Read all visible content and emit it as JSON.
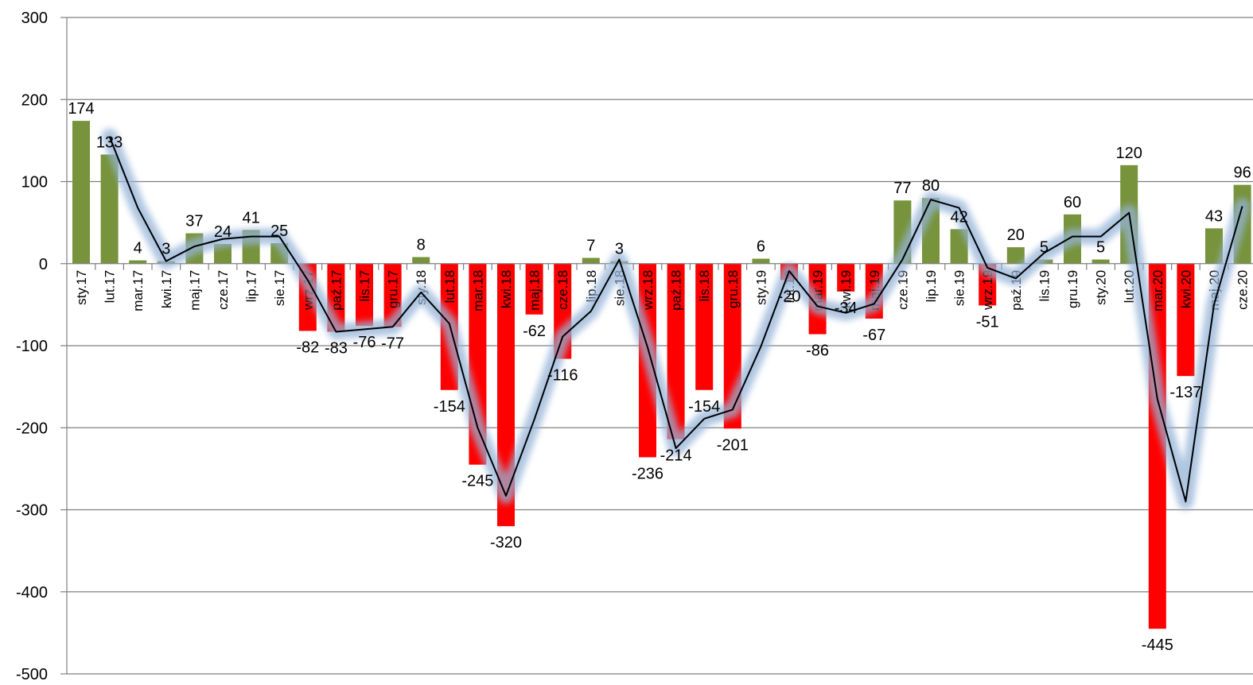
{
  "chart_data": {
    "type": "bar",
    "title": "",
    "xlabel": "",
    "ylabel": "",
    "ylim": [
      -500,
      300
    ],
    "yticks": [
      300,
      200,
      100,
      0,
      -100,
      -200,
      -300,
      -400,
      -500
    ],
    "grid": true,
    "legend": "none",
    "colors": {
      "positive": "#77933C",
      "negative": "#FF0000",
      "trend_line": "#000000",
      "trend_glow": "#95B3D7",
      "grid": "#808080"
    },
    "categories": [
      "sty.17",
      "lut.17",
      "mar.17",
      "kwi.17",
      "maj.17",
      "cze.17",
      "lip.17",
      "sie.17",
      "wrz.17",
      "paź.17",
      "lis.17",
      "gru.17",
      "sty.18",
      "lut.18",
      "mar.18",
      "kwi.18",
      "maj.18",
      "cze.18",
      "lip.18",
      "sie.18",
      "wrz.18",
      "paź.18",
      "lis.18",
      "gru.18",
      "sty.19",
      "lut.19",
      "mar.19",
      "kwi.19",
      "maj.19",
      "cze.19",
      "lip.19",
      "sie.19",
      "wrz.19",
      "paź.19",
      "lis.19",
      "gru.19",
      "sty.20",
      "lut.20",
      "mar.20",
      "kwi.20",
      "maj.20",
      "cze.20"
    ],
    "values": [
      174,
      133,
      4,
      3,
      37,
      24,
      41,
      25,
      -82,
      -83,
      -76,
      -77,
      8,
      -154,
      -245,
      -320,
      -62,
      -116,
      7,
      3,
      -236,
      -214,
      -154,
      -201,
      6,
      -20,
      -86,
      -34,
      -67,
      77,
      80,
      42,
      -51,
      20,
      5,
      60,
      5,
      120,
      -445,
      -137,
      43,
      96
    ],
    "data_labels": [
      "174",
      "133",
      "4",
      "3",
      "37",
      "24",
      "41",
      "25",
      "-82",
      "-83",
      "-76",
      "-77",
      "8",
      "-154",
      "-245",
      "-320",
      "-62",
      "-116",
      "7",
      "3",
      "-236",
      "-214",
      "-154",
      "-201",
      "6",
      "-20",
      "-86",
      "-34",
      "-67",
      "77",
      "80",
      "42",
      "-51",
      "20",
      "5",
      "60",
      "5",
      "120",
      "-445",
      "-137",
      "43",
      "96"
    ],
    "trend_line": [
      155,
      68,
      3,
      21,
      30,
      33,
      33,
      -20,
      -83,
      -80,
      -77,
      -35,
      -73,
      -200,
      -283,
      -190,
      -89,
      -58,
      5,
      -102,
      -225,
      -189,
      -178,
      -101,
      -9,
      -52,
      -60,
      -49,
      5,
      78,
      68,
      -5,
      -18,
      13,
      33,
      33,
      62,
      -165,
      -290,
      -50,
      70
    ]
  }
}
